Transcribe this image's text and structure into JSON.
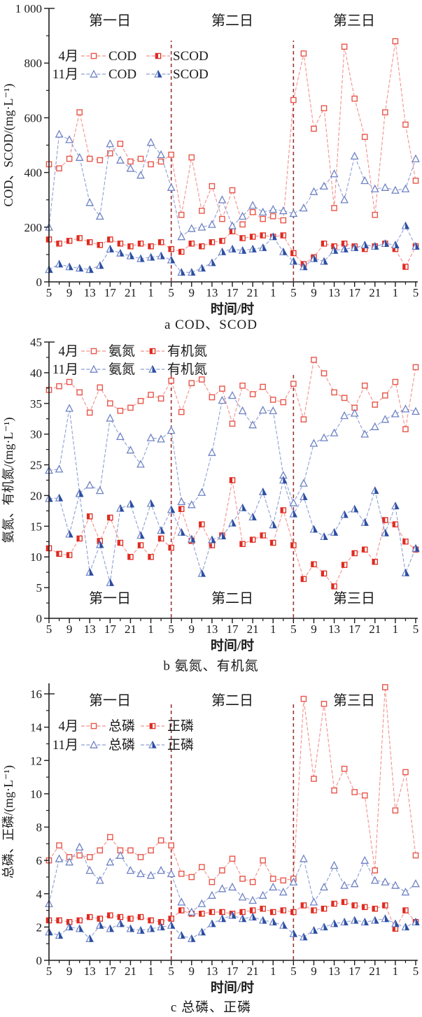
{
  "figure": {
    "background": "#ffffff"
  },
  "colors": {
    "red_line": "#f2928c",
    "red_open_stroke": "#e8564a",
    "red_fill": "#e02b20",
    "blue_line": "#8e9fd4",
    "blue_open_stroke": "#6f83c4",
    "blue_fill": "#2b4ea2",
    "day_divider": "#993432",
    "axis": "#1a1a1a",
    "text": "#1a1a1a"
  },
  "x_axis": {
    "title": "时间/时",
    "start_hour": 5,
    "end_hour": 77,
    "major_step": 4,
    "minor_step": 2,
    "tick_labels": [
      "5",
      "9",
      "13",
      "17",
      "21",
      "1",
      "5",
      "9",
      "13",
      "17",
      "21",
      "1",
      "5",
      "9",
      "13",
      "17",
      "21",
      "1",
      "5"
    ]
  },
  "day_labels": [
    "第一日",
    "第二日",
    "第三日"
  ],
  "day_boundaries_hours": [
    29,
    53
  ],
  "x_hours": [
    5,
    7,
    9,
    11,
    13,
    15,
    17,
    19,
    21,
    23,
    25,
    27,
    29,
    31,
    33,
    35,
    37,
    39,
    41,
    43,
    45,
    47,
    49,
    51,
    53,
    55,
    57,
    59,
    61,
    63,
    65,
    67,
    69,
    71,
    73,
    75,
    77
  ],
  "chart_data": [
    {
      "id": "a",
      "type": "line",
      "caption": "a COD、SCOD",
      "y_title": "COD、SCOD/(mg·L⁻¹)",
      "y_axis": {
        "min": 0,
        "max": 1000,
        "major": 200,
        "minor": 100,
        "labels": [
          "0",
          "200",
          "400",
          "600",
          "800",
          "1 000"
        ]
      },
      "day_labels_position": "top",
      "series": [
        {
          "month": "4月",
          "label": "COD",
          "marker": "open-square",
          "values": [
            430,
            415,
            450,
            620,
            450,
            445,
            470,
            505,
            440,
            450,
            430,
            440,
            465,
            245,
            455,
            260,
            350,
            230,
            335,
            210,
            255,
            230,
            240,
            225,
            665,
            835,
            560,
            635,
            270,
            860,
            670,
            530,
            245,
            620,
            880,
            575,
            370
          ]
        },
        {
          "month": "4月",
          "label": "SCOD",
          "marker": "half-square",
          "values": [
            155,
            140,
            150,
            160,
            145,
            135,
            155,
            140,
            130,
            140,
            130,
            145,
            120,
            110,
            140,
            130,
            145,
            150,
            185,
            160,
            165,
            170,
            165,
            170,
            105,
            65,
            90,
            140,
            130,
            140,
            130,
            120,
            130,
            140,
            120,
            55,
            130
          ]
        },
        {
          "month": "11月",
          "label": "COD",
          "marker": "open-triangle",
          "values": [
            200,
            540,
            520,
            455,
            290,
            240,
            505,
            445,
            415,
            390,
            510,
            465,
            345,
            165,
            195,
            200,
            210,
            300,
            205,
            240,
            280,
            255,
            265,
            260,
            250,
            270,
            330,
            350,
            395,
            300,
            460,
            370,
            340,
            345,
            335,
            340,
            450
          ]
        },
        {
          "month": "11月",
          "label": "SCOD",
          "marker": "half-triangle",
          "values": [
            45,
            65,
            55,
            50,
            45,
            60,
            120,
            105,
            95,
            85,
            90,
            95,
            80,
            35,
            35,
            50,
            70,
            110,
            120,
            115,
            120,
            125,
            165,
            110,
            75,
            55,
            85,
            75,
            115,
            120,
            125,
            135,
            130,
            140,
            135,
            205,
            130
          ]
        }
      ]
    },
    {
      "id": "b",
      "type": "line",
      "caption": "b 氨氮、有机氮",
      "y_title": "氨氮、有机氮/(mg·L⁻¹)",
      "y_axis": {
        "min": 0,
        "max": 45,
        "major": 5,
        "minor": 2.5,
        "labels": [
          "0",
          "5",
          "10",
          "15",
          "20",
          "25",
          "30",
          "35",
          "40",
          "45"
        ]
      },
      "day_labels_position": "bottom",
      "series": [
        {
          "month": "4月",
          "label": "氨氮",
          "marker": "open-square",
          "values": [
            37.2,
            37.8,
            38.5,
            36.8,
            33.5,
            37.6,
            35.0,
            33.8,
            34.3,
            35.4,
            36.4,
            35.8,
            38.7,
            33.6,
            38.3,
            38.9,
            36.0,
            37.4,
            31.7,
            37.9,
            36.5,
            37.7,
            35.6,
            35.2,
            38.2,
            32.4,
            42.1,
            39.9,
            36.8,
            35.9,
            34.3,
            37.9,
            34.8,
            36.3,
            38.5,
            30.8,
            40.9
          ]
        },
        {
          "month": "4月",
          "label": "有机氮",
          "marker": "half-square",
          "values": [
            11.4,
            10.5,
            10.3,
            13.0,
            16.6,
            12.6,
            16.4,
            12.3,
            10.0,
            11.9,
            10.0,
            13.0,
            11.5,
            17.8,
            12.6,
            15.3,
            11.9,
            13.5,
            22.5,
            12.1,
            12.8,
            13.5,
            12.3,
            17.6,
            11.9,
            6.4,
            8.8,
            7.3,
            5.2,
            8.7,
            10.6,
            11.2,
            9.2,
            16.0,
            15.3,
            12.5,
            11.2
          ]
        },
        {
          "month": "11月",
          "label": "氨氮",
          "marker": "open-triangle",
          "values": [
            24.1,
            24.3,
            34.2,
            20.4,
            21.7,
            20.8,
            32.6,
            29.6,
            27.4,
            25.1,
            29.4,
            29.2,
            30.6,
            19.0,
            18.5,
            20.5,
            27.0,
            35.5,
            36.3,
            33.8,
            31.5,
            33.9,
            33.8,
            23.3,
            18.8,
            22.0,
            28.5,
            29.4,
            30.2,
            33.0,
            33.4,
            30.0,
            31.2,
            32.4,
            33.3,
            34.1,
            33.7
          ]
        },
        {
          "month": "11月",
          "label": "有机氮",
          "marker": "half-triangle",
          "values": [
            19.5,
            19.6,
            13.7,
            20.3,
            7.5,
            12.0,
            5.8,
            17.9,
            18.6,
            13.5,
            18.7,
            14.3,
            17.7,
            14.0,
            12.9,
            7.3,
            12.8,
            13.4,
            15.5,
            18.0,
            16.5,
            20.6,
            15.2,
            22.5,
            17.0,
            19.8,
            14.5,
            13.3,
            14.0,
            16.9,
            17.8,
            15.6,
            20.8,
            13.9,
            18.3,
            7.4,
            11.4
          ]
        }
      ]
    },
    {
      "id": "c",
      "type": "line",
      "caption": "c 总磷、正磷",
      "y_title": "总磷、正磷/(mg·L⁻¹)",
      "y_axis": {
        "min": 0,
        "max": 16,
        "major": 2,
        "minor": 1,
        "labels": [
          "0",
          "2",
          "4",
          "6",
          "8",
          "10",
          "12",
          "14",
          "16"
        ]
      },
      "day_labels_position": "top",
      "series": [
        {
          "month": "4月",
          "label": "总磷",
          "marker": "open-square",
          "values": [
            6.0,
            6.9,
            6.2,
            6.3,
            6.2,
            6.6,
            7.4,
            6.6,
            6.6,
            6.2,
            6.6,
            7.2,
            6.9,
            5.2,
            5.0,
            5.6,
            4.7,
            5.4,
            6.1,
            4.9,
            4.7,
            6.0,
            4.9,
            4.8,
            4.9,
            15.7,
            10.9,
            15.4,
            10.2,
            11.5,
            10.1,
            9.9,
            5.4,
            16.4,
            9.0,
            11.3,
            6.3
          ]
        },
        {
          "month": "4月",
          "label": "正磷",
          "marker": "half-square",
          "values": [
            2.4,
            2.4,
            2.3,
            2.4,
            2.6,
            2.5,
            2.7,
            2.6,
            2.5,
            2.6,
            2.4,
            2.3,
            2.5,
            3.0,
            2.8,
            2.8,
            2.9,
            2.9,
            2.8,
            2.9,
            3.0,
            3.1,
            2.9,
            3.0,
            2.9,
            3.3,
            3.0,
            3.1,
            3.4,
            3.5,
            3.3,
            3.2,
            3.1,
            3.3,
            1.9,
            3.0,
            2.3
          ]
        },
        {
          "month": "11月",
          "label": "总磷",
          "marker": "open-triangle",
          "values": [
            3.4,
            6.1,
            5.9,
            6.8,
            5.4,
            4.8,
            5.9,
            6.3,
            5.4,
            5.2,
            5.1,
            5.4,
            5.2,
            3.5,
            2.9,
            3.4,
            3.9,
            4.3,
            4.4,
            3.8,
            3.6,
            3.9,
            4.4,
            4.1,
            4.7,
            6.1,
            3.5,
            4.4,
            5.7,
            4.5,
            4.6,
            6.0,
            4.8,
            4.7,
            4.5,
            4.1,
            4.6
          ]
        },
        {
          "month": "11月",
          "label": "正磷",
          "marker": "half-triangle",
          "values": [
            1.7,
            1.5,
            2.0,
            1.9,
            1.3,
            2.1,
            1.9,
            2.2,
            1.9,
            1.8,
            1.9,
            2.0,
            2.1,
            1.5,
            1.3,
            1.7,
            2.2,
            2.5,
            2.7,
            2.5,
            2.6,
            2.4,
            2.3,
            2.1,
            1.6,
            1.4,
            1.8,
            2.0,
            2.2,
            2.3,
            2.4,
            2.3,
            2.4,
            2.5,
            2.2,
            2.0,
            2.3
          ]
        }
      ]
    }
  ]
}
